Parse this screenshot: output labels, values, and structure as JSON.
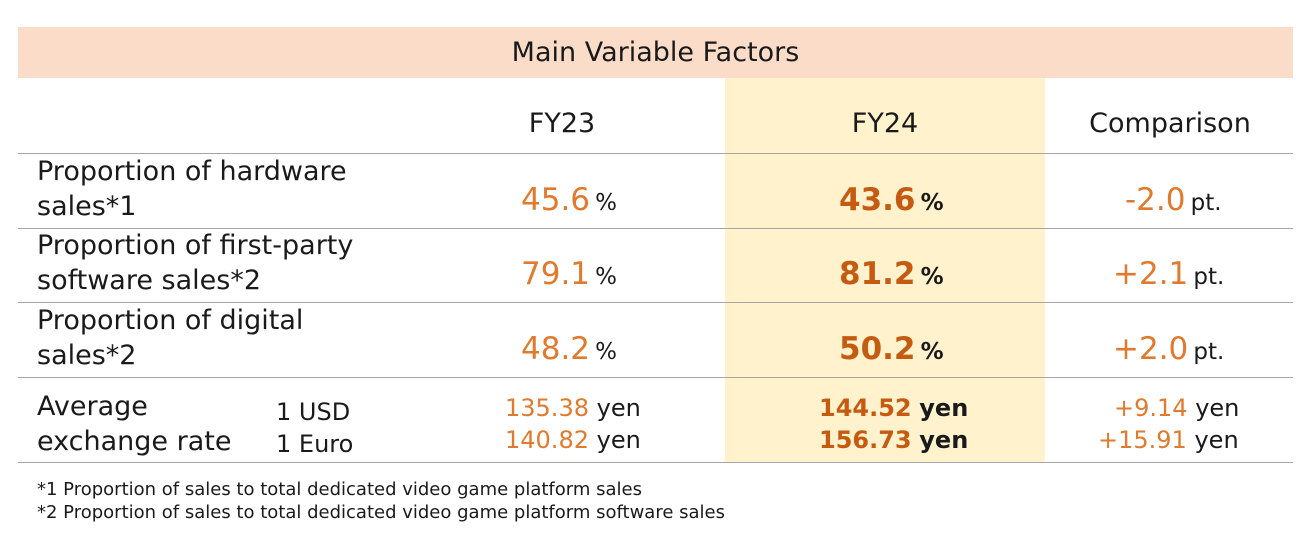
{
  "title": "Main Variable Factors",
  "columns": {
    "fy23": "FY23",
    "fy24": "FY24",
    "comparison": "Comparison"
  },
  "rows": [
    {
      "label_line1": "Proportion of hardware",
      "label_line2": "sales*1",
      "fy23": "45.6",
      "fy24": "43.6",
      "comparison": "-2.0",
      "unit": "%",
      "comparison_unit": "pt."
    },
    {
      "label_line1": "Proportion of first-party",
      "label_line2": "software sales*2",
      "fy23": "79.1",
      "fy24": "81.2",
      "comparison": "+2.1",
      "unit": "%",
      "comparison_unit": "pt."
    },
    {
      "label_line1": "Proportion of digital",
      "label_line2": "sales*2",
      "fy23": "48.2",
      "fy24": "50.2",
      "comparison": "+2.0",
      "unit": "%",
      "comparison_unit": "pt."
    }
  ],
  "exchange": {
    "label_line1": "Average",
    "label_line2": "exchange rate",
    "unit": "yen",
    "usd": {
      "currency": "1 USD",
      "fy23": "135.38",
      "fy24": "144.52",
      "comparison": "+9.14"
    },
    "euro": {
      "currency": "1 Euro",
      "fy23": "140.82",
      "fy24": "156.73",
      "comparison": "+15.91"
    }
  },
  "footnotes": [
    "*1 Proportion of sales to total dedicated video game platform sales",
    "*2 Proportion of sales to total dedicated video game platform software sales"
  ],
  "colors": {
    "title_band": "#fbdcc9",
    "fy24_highlight": "#fff2cc",
    "value_orange": "#e07a2e",
    "value_bold": "#c55a11"
  }
}
